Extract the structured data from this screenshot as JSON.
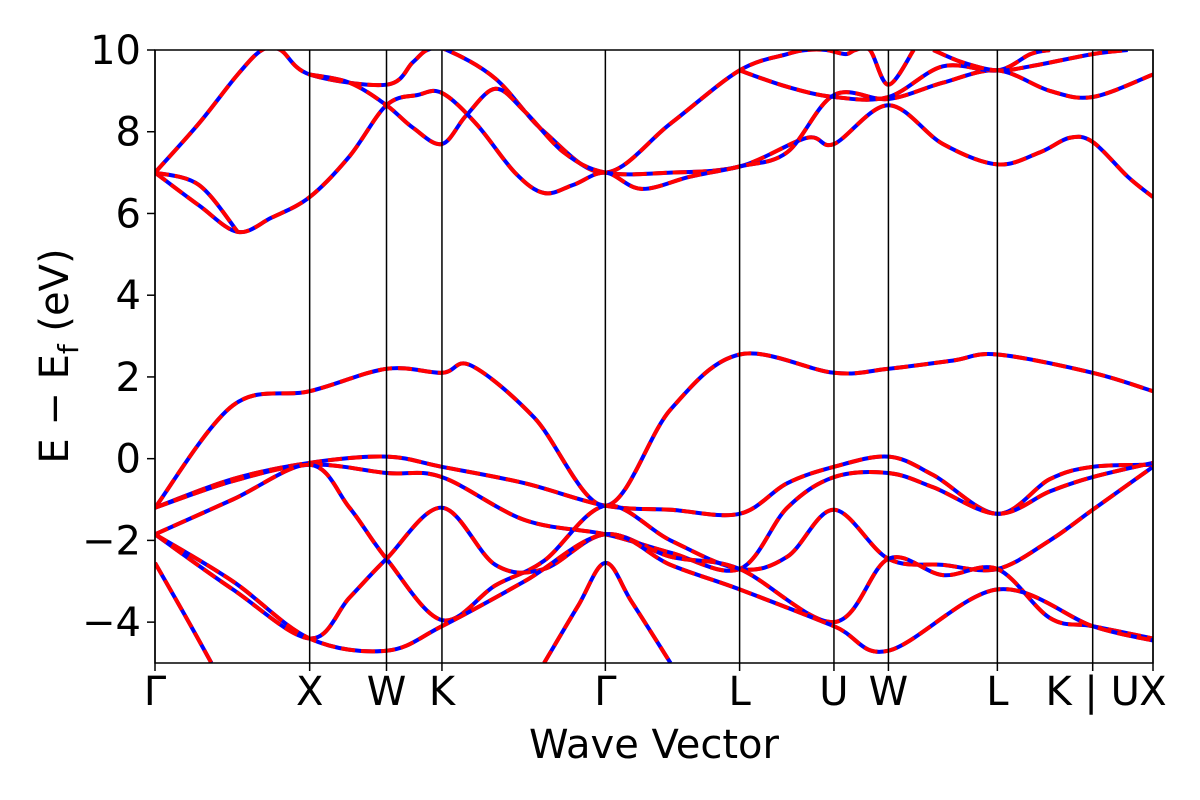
{
  "chart_data": {
    "type": "line",
    "title": "",
    "xlabel": "Wave Vector",
    "ylabel_main": "E − E",
    "ylabel_sub": "f",
    "ylabel_unit": " (eV)",
    "ylim": [
      -5,
      10
    ],
    "xlim": [
      0,
      10.26
    ],
    "yticks": [
      {
        "value": -4,
        "label": "−4"
      },
      {
        "value": -2,
        "label": "−2"
      },
      {
        "value": 0,
        "label": "0"
      },
      {
        "value": 2,
        "label": "2"
      },
      {
        "value": 4,
        "label": "4"
      },
      {
        "value": 6,
        "label": "6"
      },
      {
        "value": 8,
        "label": "8"
      },
      {
        "value": 10,
        "label": "10"
      }
    ],
    "kpoints": [
      {
        "x": 0.0,
        "label": "Γ"
      },
      {
        "x": 1.59,
        "label": "X"
      },
      {
        "x": 2.38,
        "label": "W"
      },
      {
        "x": 2.95,
        "label": "K"
      },
      {
        "x": 4.63,
        "label": "Γ"
      },
      {
        "x": 6.01,
        "label": "L"
      },
      {
        "x": 6.98,
        "label": "U"
      },
      {
        "x": 7.54,
        "label": "W"
      },
      {
        "x": 8.66,
        "label": "L"
      },
      {
        "x": 9.64,
        "label": "K | U"
      },
      {
        "x": 10.26,
        "label": "X"
      }
    ],
    "grid": false,
    "legend": "none",
    "series_style": [
      {
        "color": "#0000ff",
        "dash": "solid"
      },
      {
        "color": "#ff0000",
        "dash": "dashed"
      }
    ],
    "series": [
      {
        "points": [
          [
            0,
            -1.2
          ],
          [
            0.8,
            1.3
          ],
          [
            1.59,
            1.65
          ],
          [
            2.38,
            2.2
          ],
          [
            2.95,
            2.1
          ],
          [
            3.25,
            2.28
          ],
          [
            3.9,
            1.0
          ],
          [
            4.63,
            -1.15
          ],
          [
            5.3,
            1.2
          ],
          [
            6.01,
            2.55
          ],
          [
            6.98,
            2.1
          ],
          [
            7.54,
            2.2
          ],
          [
            8.2,
            2.4
          ],
          [
            8.66,
            2.55
          ],
          [
            9.64,
            2.1
          ],
          [
            10.26,
            1.65
          ]
        ]
      },
      {
        "points": [
          [
            0,
            -1.2
          ],
          [
            0.8,
            -0.5
          ],
          [
            1.59,
            -0.1
          ],
          [
            2.38,
            0.05
          ],
          [
            2.95,
            -0.2
          ],
          [
            3.8,
            -0.6
          ],
          [
            4.63,
            -1.15
          ],
          [
            5.3,
            -1.25
          ],
          [
            6.01,
            -1.35
          ],
          [
            6.5,
            -0.6
          ],
          [
            6.98,
            -0.2
          ],
          [
            7.54,
            0.05
          ],
          [
            8.0,
            -0.4
          ],
          [
            8.66,
            -1.35
          ],
          [
            9.2,
            -0.5
          ],
          [
            9.64,
            -0.2
          ],
          [
            10.26,
            -0.15
          ]
        ]
      },
      {
        "points": [
          [
            0,
            -1.2
          ],
          [
            0.8,
            -0.55
          ],
          [
            1.59,
            -0.15
          ],
          [
            2.38,
            -0.35
          ],
          [
            2.95,
            -0.45
          ],
          [
            3.8,
            -1.5
          ],
          [
            4.63,
            -1.85
          ],
          [
            5.3,
            -2.3
          ],
          [
            6.01,
            -2.7
          ],
          [
            6.5,
            -1.2
          ],
          [
            6.98,
            -0.45
          ],
          [
            7.54,
            -0.35
          ],
          [
            8.0,
            -0.7
          ],
          [
            8.66,
            -1.35
          ],
          [
            9.2,
            -0.8
          ],
          [
            9.64,
            -0.45
          ],
          [
            10.26,
            -0.1
          ]
        ]
      },
      {
        "points": [
          [
            0,
            -1.85
          ],
          [
            0.8,
            -1.0
          ],
          [
            1.59,
            -0.15
          ],
          [
            2.0,
            -1.2
          ],
          [
            2.38,
            -2.45
          ],
          [
            2.95,
            -3.95
          ],
          [
            3.5,
            -3.1
          ],
          [
            4.0,
            -2.5
          ],
          [
            4.63,
            -1.15
          ],
          [
            5.3,
            -2.0
          ],
          [
            6.01,
            -2.7
          ],
          [
            6.5,
            -2.4
          ],
          [
            6.98,
            -1.25
          ],
          [
            7.54,
            -2.45
          ],
          [
            8.1,
            -2.6
          ],
          [
            8.66,
            -2.7
          ],
          [
            9.2,
            -2.0
          ],
          [
            9.64,
            -1.25
          ],
          [
            10.26,
            -0.2
          ]
        ]
      },
      {
        "points": [
          [
            0,
            -1.85
          ],
          [
            0.8,
            -3.2
          ],
          [
            1.59,
            -4.4
          ],
          [
            2.0,
            -3.4
          ],
          [
            2.38,
            -2.45
          ],
          [
            2.95,
            -1.2
          ],
          [
            3.5,
            -2.6
          ],
          [
            4.0,
            -2.7
          ],
          [
            4.63,
            -1.85
          ],
          [
            5.3,
            -2.4
          ],
          [
            6.01,
            -2.7
          ],
          [
            6.98,
            -4.0
          ],
          [
            7.54,
            -2.45
          ],
          [
            8.1,
            -2.85
          ],
          [
            8.66,
            -2.7
          ],
          [
            9.2,
            -3.9
          ],
          [
            9.64,
            -4.1
          ],
          [
            10.26,
            -4.4
          ]
        ]
      },
      {
        "points": [
          [
            0,
            -1.85
          ],
          [
            0.8,
            -3.0
          ],
          [
            1.59,
            -4.4
          ],
          [
            2.38,
            -4.7
          ],
          [
            2.95,
            -4.1
          ],
          [
            3.8,
            -3.0
          ],
          [
            4.63,
            -1.85
          ],
          [
            5.3,
            -2.6
          ],
          [
            6.01,
            -3.2
          ],
          [
            6.98,
            -4.1
          ],
          [
            7.54,
            -4.7
          ],
          [
            8.66,
            -3.2
          ],
          [
            9.64,
            -4.1
          ],
          [
            10.26,
            -4.45
          ]
        ]
      },
      {
        "points": [
          [
            0,
            -2.55
          ],
          [
            0.3,
            -3.8
          ],
          [
            0.58,
            -5.0
          ]
        ]
      },
      {
        "points": [
          [
            4.0,
            -5.0
          ],
          [
            4.35,
            -3.6
          ],
          [
            4.63,
            -2.55
          ],
          [
            4.9,
            -3.5
          ],
          [
            5.3,
            -5.0
          ]
        ]
      },
      {
        "points": [
          [
            0,
            7.0
          ],
          [
            0.45,
            8.2
          ],
          [
            0.85,
            9.4
          ],
          [
            1.1,
            10.0
          ],
          [
            1.29,
            10.0
          ],
          [
            1.59,
            9.4
          ],
          [
            2.38,
            9.15
          ],
          [
            2.65,
            9.7
          ],
          [
            2.8,
            10.0
          ],
          [
            3.0,
            10.0
          ],
          [
            3.5,
            9.3
          ],
          [
            4.0,
            8.0
          ],
          [
            4.63,
            7.0
          ],
          [
            5.3,
            8.2
          ],
          [
            6.01,
            9.5
          ],
          [
            6.5,
            9.9
          ],
          [
            6.7,
            10.0
          ],
          [
            6.9,
            10.0
          ],
          [
            7.1,
            9.9
          ],
          [
            7.2,
            10.0
          ],
          [
            7.35,
            10.0
          ],
          [
            7.54,
            9.15
          ],
          [
            7.8,
            10.0
          ]
        ]
      },
      {
        "points": [
          [
            1.59,
            9.4
          ],
          [
            2.0,
            9.2
          ],
          [
            2.38,
            8.65
          ],
          [
            2.65,
            8.1
          ],
          [
            2.95,
            7.7
          ],
          [
            3.2,
            8.4
          ],
          [
            3.5,
            9.05
          ],
          [
            3.8,
            8.5
          ],
          [
            4.2,
            7.5
          ],
          [
            4.63,
            7.0
          ],
          [
            5.3,
            7.0
          ],
          [
            6.01,
            7.15
          ],
          [
            6.7,
            7.85
          ],
          [
            6.98,
            7.7
          ],
          [
            7.54,
            8.65
          ],
          [
            8.1,
            7.7
          ],
          [
            8.66,
            7.2
          ],
          [
            9.1,
            7.5
          ],
          [
            9.4,
            7.85
          ],
          [
            9.64,
            7.75
          ],
          [
            10.0,
            6.9
          ],
          [
            10.26,
            6.4
          ]
        ]
      },
      {
        "points": [
          [
            0,
            7.0
          ],
          [
            0.45,
            6.2
          ],
          [
            0.85,
            5.55
          ],
          [
            1.2,
            5.9
          ],
          [
            1.59,
            6.4
          ],
          [
            2.0,
            7.4
          ],
          [
            2.38,
            8.65
          ],
          [
            2.7,
            8.9
          ],
          [
            2.95,
            8.95
          ],
          [
            3.3,
            8.2
          ],
          [
            3.7,
            7.0
          ],
          [
            4.0,
            6.5
          ],
          [
            4.3,
            6.7
          ],
          [
            4.63,
            7.0
          ],
          [
            5.0,
            6.6
          ],
          [
            5.5,
            6.9
          ],
          [
            6.01,
            7.15
          ],
          [
            6.5,
            7.5
          ],
          [
            6.98,
            8.9
          ],
          [
            7.54,
            8.8
          ],
          [
            8.1,
            9.2
          ],
          [
            8.66,
            9.5
          ],
          [
            9.2,
            9.0
          ],
          [
            9.64,
            8.85
          ],
          [
            10.26,
            9.4
          ]
        ]
      },
      {
        "points": [
          [
            0,
            7.0
          ],
          [
            0.45,
            6.7
          ],
          [
            0.85,
            5.55
          ]
        ]
      },
      {
        "points": [
          [
            6.01,
            9.5
          ],
          [
            6.5,
            9.1
          ],
          [
            6.98,
            8.85
          ],
          [
            7.54,
            8.85
          ],
          [
            8.1,
            9.6
          ],
          [
            8.66,
            9.5
          ],
          [
            9.0,
            9.9
          ],
          [
            9.2,
            10.0
          ]
        ]
      },
      {
        "points": [
          [
            8.0,
            10.0
          ],
          [
            8.3,
            9.7
          ],
          [
            8.66,
            9.5
          ],
          [
            9.0,
            9.6
          ],
          [
            9.64,
            9.9
          ],
          [
            10.0,
            10.0
          ]
        ]
      }
    ]
  }
}
